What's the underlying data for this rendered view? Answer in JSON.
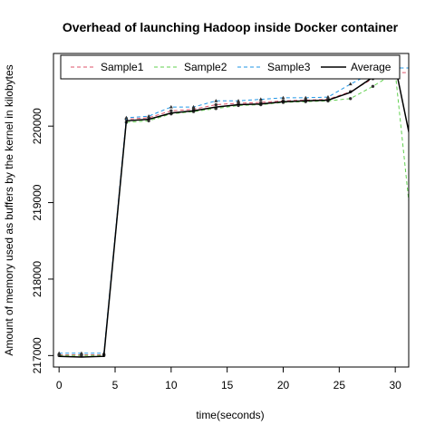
{
  "chart_data": {
    "type": "line",
    "title": "Overhead of launching Hadoop inside Docker container",
    "xlabel": "time(seconds)",
    "ylabel": "Amount of memory used as buffers by the kernel in kilobytes",
    "xlim": [
      -0.5,
      31.2
    ],
    "ylim": [
      216850,
      220950
    ],
    "x_ticks": [
      0,
      5,
      10,
      15,
      20,
      25,
      30
    ],
    "y_ticks": [
      217000,
      218000,
      219000,
      220000
    ],
    "x_tick_labels": [
      "0",
      "5",
      "10",
      "15",
      "20",
      "25",
      "30"
    ],
    "y_tick_labels": [
      "217000",
      "218000",
      "219000",
      "220000"
    ],
    "legend_position": "top",
    "x": [
      0,
      2,
      4,
      6,
      8,
      10,
      12,
      14,
      16,
      18,
      20,
      22,
      24,
      26,
      28,
      30,
      32
    ],
    "series": [
      {
        "name": "Sample1",
        "color": "#DF536B",
        "dash": "dashed",
        "marker": "circle",
        "values": [
          217010,
          217010,
          217010,
          220090,
          220110,
          220200,
          220220,
          220280,
          220300,
          220310,
          220330,
          220340,
          220350,
          220450,
          220620,
          220700,
          220700
        ]
      },
      {
        "name": "Sample2",
        "color": "#61D04F",
        "dash": "dashed",
        "marker": "circle",
        "values": [
          217000,
          217000,
          217000,
          220050,
          220070,
          220160,
          220190,
          220230,
          220270,
          220280,
          220310,
          220320,
          220330,
          220360,
          220520,
          220700,
          217900
        ]
      },
      {
        "name": "Sample3",
        "color": "#2297E6",
        "dash": "dashed",
        "marker": "triangle",
        "values": [
          217030,
          217030,
          217030,
          220110,
          220130,
          220250,
          220250,
          220330,
          220330,
          220350,
          220370,
          220370,
          220380,
          220550,
          220700,
          220760,
          220760
        ]
      },
      {
        "name": "Average",
        "color": "#000000",
        "dash": "solid",
        "marker": "none",
        "values": [
          216990,
          216980,
          216990,
          220070,
          220090,
          220170,
          220200,
          220250,
          220280,
          220290,
          220320,
          220330,
          220340,
          220440,
          220640,
          220780,
          219360
        ]
      }
    ]
  }
}
